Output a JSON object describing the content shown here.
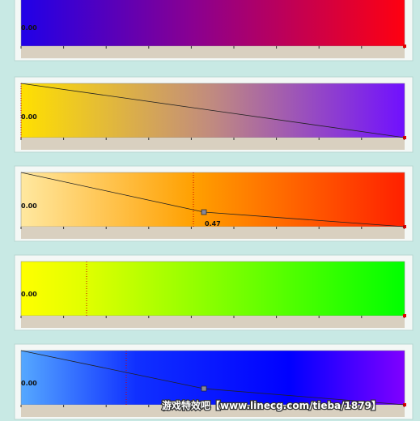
{
  "panels": [
    {
      "label": "0.00"
    },
    {
      "label": "0.00"
    },
    {
      "label": "0.00",
      "marker_label": "0.47"
    },
    {
      "label": "0.00"
    },
    {
      "label": "0.00"
    }
  ],
  "watermark": "游戏特效吧【www.linecg.com/tieba/1879】"
}
